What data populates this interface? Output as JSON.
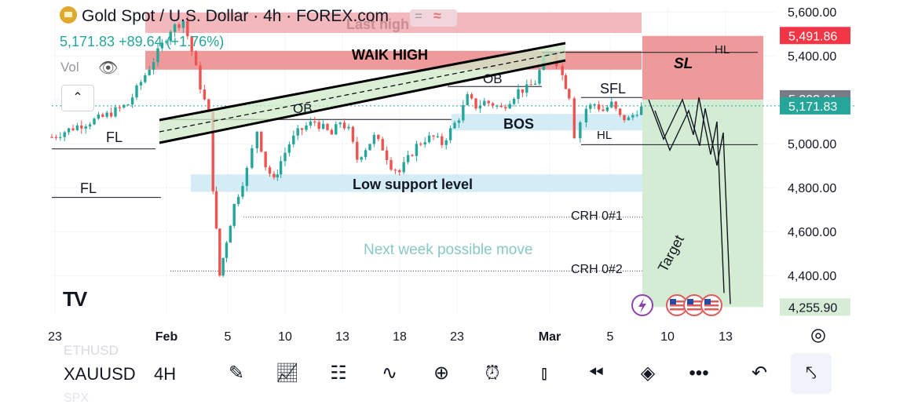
{
  "header": {
    "title": "Gold Spot / U.S. Dollar · 4h · FOREX.com",
    "price_value": "5,171.83",
    "price_change": "+89.64 (+1.76%)",
    "vol_label": "Vol",
    "icons": [
      "gold-coin-icon",
      "eye-off-icon",
      "chevron-up-icon",
      "compare-icon",
      "wave-icon"
    ],
    "pill_a": "=",
    "pill_b": "≈"
  },
  "chart_data": {
    "type": "candlestick",
    "symbol": "XAUUSD",
    "timeframe": "4H",
    "y_ticks": [
      "5,600.00",
      "5,400.00",
      "5,200.00",
      "5,000.00",
      "4,800.00",
      "4,600.00",
      "4,400.00"
    ],
    "y_tick_values": [
      5600,
      5400,
      5200,
      5000,
      4800,
      4600,
      4400
    ],
    "x_ticks": [
      "23",
      "Feb",
      "5",
      "10",
      "13",
      "18",
      "23",
      "Mar",
      "5",
      "10",
      "13"
    ],
    "price_labels": [
      {
        "text": "5,491.86",
        "value": 5491.86,
        "color": "#f23645"
      },
      {
        "text": "5,203.91",
        "value": 5203.91,
        "color": "#787b86"
      },
      {
        "text": "5,171.83",
        "value": 5171.83,
        "color": "#26a69a"
      },
      {
        "text": "4,255.90",
        "value": 4255.9,
        "color": "#d6ecd6"
      }
    ],
    "price_path": [
      [
        0,
        5030
      ],
      [
        3,
        5080
      ],
      [
        6,
        5120
      ],
      [
        9,
        5180
      ],
      [
        12,
        5380
      ],
      [
        14,
        5520
      ],
      [
        15.5,
        5560
      ],
      [
        16.5,
        5420
      ],
      [
        17.5,
        5260
      ],
      [
        18.5,
        5130
      ],
      [
        19,
        4800
      ],
      [
        19.8,
        4400
      ],
      [
        20.6,
        4560
      ],
      [
        21.5,
        4720
      ],
      [
        23,
        4880
      ],
      [
        24.2,
        5060
      ],
      [
        25.2,
        4900
      ],
      [
        26.2,
        4830
      ],
      [
        27,
        4920
      ],
      [
        28,
        5000
      ],
      [
        29,
        5050
      ],
      [
        30,
        5080
      ],
      [
        31,
        5100
      ],
      [
        32,
        5070
      ],
      [
        33,
        5040
      ],
      [
        34,
        5100
      ],
      [
        35,
        5060
      ],
      [
        36,
        4930
      ],
      [
        37,
        4980
      ],
      [
        38,
        5030
      ],
      [
        39,
        4980
      ],
      [
        40,
        4900
      ],
      [
        41,
        4870
      ],
      [
        42,
        4930
      ],
      [
        43,
        4990
      ],
      [
        44,
        5020
      ],
      [
        45,
        5030
      ],
      [
        46,
        5000
      ],
      [
        47,
        5060
      ],
      [
        48,
        5120
      ],
      [
        49,
        5210
      ],
      [
        50,
        5170
      ],
      [
        51,
        5190
      ],
      [
        52,
        5180
      ],
      [
        53,
        5160
      ],
      [
        54,
        5200
      ],
      [
        55,
        5240
      ],
      [
        56,
        5250
      ],
      [
        57,
        5280
      ],
      [
        58,
        5380
      ],
      [
        58.8,
        5420
      ],
      [
        59.5,
        5370
      ],
      [
        60.2,
        5310
      ],
      [
        61,
        5220
      ],
      [
        61.6,
        5040
      ],
      [
        62.3,
        5100
      ],
      [
        63,
        5160
      ],
      [
        64,
        5180
      ],
      [
        65,
        5150
      ],
      [
        66,
        5180
      ],
      [
        67,
        5120
      ],
      [
        68,
        5110
      ],
      [
        69,
        5150
      ],
      [
        70,
        5172
      ]
    ],
    "annotations": {
      "last_high": "Last high",
      "weak_high": "WAIK HIGH",
      "hl_right": "HL",
      "sl": "SL",
      "ob_left": "OB",
      "ob_right": "OB",
      "sfl": "SFL",
      "bos": "BOS",
      "hl_lower": "HL",
      "fl_upper": "FL",
      "fl_lower": "FL",
      "low_support": "Low support level",
      "crh1": "CRH 0#1",
      "crh2": "CRH 0#2",
      "next_week": "Next week possible move",
      "target": "Target"
    },
    "zones": {
      "last_high": [
        5540,
        5630
      ],
      "weak_high": [
        5440,
        5360
      ],
      "sl": [
        5490,
        5200
      ],
      "target": [
        5200,
        4255.9
      ],
      "bos": [
        5135,
        5060
      ],
      "low_support": [
        4860,
        4780
      ]
    },
    "levels": {
      "hl_right": 5415,
      "fl_upper": 4990,
      "fl_lower": 4755,
      "ob_left": 5110,
      "ob_right": 5260,
      "sfl": 5210,
      "hl_lower": 4995,
      "crh1": 4665,
      "crh2": 4420,
      "current": 5171.83
    },
    "projection": [
      5200,
      5020,
      5200,
      5040,
      5210,
      4950,
      5100,
      4320
    ],
    "colors": {
      "up": "#26a69a",
      "down": "#ef5350",
      "sl_zone": "#ef9a9a",
      "target_zone": "#c8e6c9"
    }
  },
  "toolbar": {
    "symbol": "XAUUSD",
    "timeframe": "4H",
    "ghost_top": "ETHUSD",
    "ghost_bottom": "SPX",
    "icons": [
      "draw-pen-icon",
      "indicators-icon",
      "layout-grid-icon",
      "patterns-icon",
      "add-icon",
      "alert-clock-icon",
      "candles-icon",
      "replay-icon",
      "layers-icon",
      "more-icon",
      "undo-icon",
      "collapse-icon"
    ]
  },
  "badges": [
    "lightning-icon",
    "us-flag-icon",
    "us-flag-icon",
    "us-flag-icon"
  ],
  "settings_icon": "settings-icon"
}
